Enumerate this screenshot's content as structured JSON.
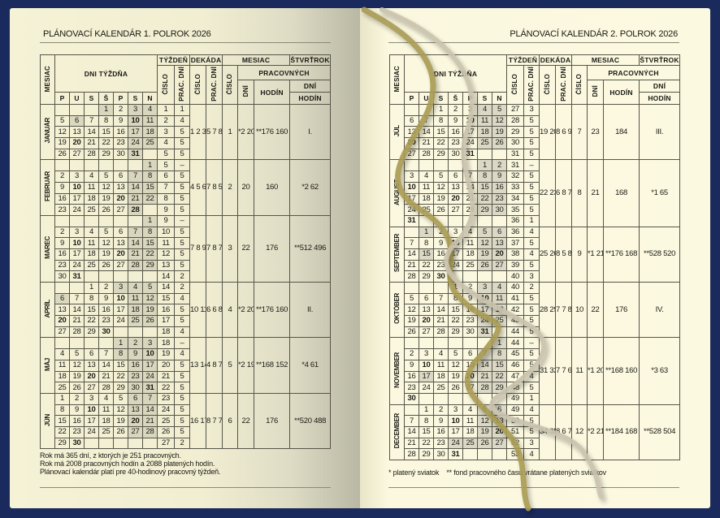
{
  "headers": {
    "mesiac": "MESIAC",
    "dni_tyzdna": "DNI TÝŽDŇA",
    "tyzden": "TÝŽDEŇ",
    "dekada": "DEKÁDA",
    "mesiac_group": "MESIAC",
    "stvrtrok": "ŠTVRŤROK",
    "cislo": "ČÍSLO",
    "prac_dni": "PRAC. DNÍ",
    "pracovnych": "PRACOVNÝCH",
    "dni": "DNÍ",
    "hodin": "HODÍN",
    "weekdays": [
      "P",
      "U",
      "S",
      "Š",
      "P",
      "S",
      "N"
    ]
  },
  "colors": {
    "frame": "#1b2a5c",
    "paper": "#fbf8df",
    "shade": "#dbd9c6"
  },
  "pages": [
    {
      "title": "PLÁNOVACÍ KALENDÁR 1. POLROK 2026",
      "months": [
        {
          "name": "JANUÁR",
          "weeks": [
            [
              "",
              "",
              "",
              1,
              2,
              3,
              4
            ],
            [
              5,
              6,
              7,
              8,
              9,
              10,
              11
            ],
            [
              12,
              13,
              14,
              15,
              16,
              17,
              18
            ],
            [
              19,
              20,
              21,
              22,
              23,
              24,
              25
            ],
            [
              26,
              27,
              28,
              29,
              30,
              31,
              ""
            ]
          ],
          "week_numbers": [
            "1",
            "2",
            "3",
            "4",
            "5"
          ],
          "week_workdays": [
            "1",
            "4",
            "5",
            "5",
            "5"
          ],
          "decades": "1\n2\n3",
          "decade_workdays": "5\n7\n8",
          "month_number": "1",
          "workdays": "*2\n20",
          "hours": "**176\n160",
          "quarter": "I.",
          "holidays": [
            1,
            6
          ]
        },
        {
          "name": "FEBRUÁR",
          "weeks": [
            [
              "",
              "",
              "",
              "",
              "",
              "",
              1
            ],
            [
              2,
              3,
              4,
              5,
              6,
              7,
              8
            ],
            [
              9,
              10,
              11,
              12,
              13,
              14,
              15
            ],
            [
              16,
              17,
              18,
              19,
              20,
              21,
              22
            ],
            [
              23,
              24,
              25,
              26,
              27,
              28,
              ""
            ]
          ],
          "week_numbers": [
            "5",
            "6",
            "7",
            "8",
            "9"
          ],
          "week_workdays": [
            "–",
            "5",
            "5",
            "5",
            "5"
          ],
          "decades": "4\n5\n6",
          "decade_workdays": "7\n8\n5",
          "month_number": "2",
          "workdays": "20",
          "hours": "160",
          "quarter": "*2\n62",
          "holidays": []
        },
        {
          "name": "MAREC",
          "weeks": [
            [
              "",
              "",
              "",
              "",
              "",
              "",
              1
            ],
            [
              2,
              3,
              4,
              5,
              6,
              7,
              8
            ],
            [
              9,
              10,
              11,
              12,
              13,
              14,
              15
            ],
            [
              16,
              17,
              18,
              19,
              20,
              21,
              22
            ],
            [
              23,
              24,
              25,
              26,
              27,
              28,
              29
            ],
            [
              30,
              31,
              "",
              "",
              "",
              "",
              ""
            ]
          ],
          "week_numbers": [
            "9",
            "10",
            "11",
            "12",
            "13",
            "14"
          ],
          "week_workdays": [
            "–",
            "5",
            "5",
            "5",
            "5",
            "2"
          ],
          "decades": "7\n8\n9",
          "decade_workdays": "7\n8\n7",
          "month_number": "3",
          "workdays": "22",
          "hours": "176",
          "quarter": "**512\n496",
          "holidays": []
        },
        {
          "name": "APRÍL",
          "weeks": [
            [
              "",
              "",
              1,
              2,
              3,
              4,
              5
            ],
            [
              6,
              7,
              8,
              9,
              10,
              11,
              12
            ],
            [
              13,
              14,
              15,
              16,
              17,
              18,
              19
            ],
            [
              20,
              21,
              22,
              23,
              24,
              25,
              26
            ],
            [
              27,
              28,
              29,
              30,
              "",
              "",
              ""
            ]
          ],
          "week_numbers": [
            "14",
            "15",
            "16",
            "17",
            "18"
          ],
          "week_workdays": [
            "2",
            "4",
            "5",
            "5",
            "4"
          ],
          "decades": "10\n11\n12",
          "decade_workdays": "6\n6\n8",
          "month_number": "4",
          "workdays": "*2\n20",
          "hours": "**176\n160",
          "quarter": "II.",
          "holidays": [
            3,
            6
          ]
        },
        {
          "name": "MÁJ",
          "weeks": [
            [
              "",
              "",
              "",
              "",
              1,
              2,
              3
            ],
            [
              4,
              5,
              6,
              7,
              8,
              9,
              10
            ],
            [
              11,
              12,
              13,
              14,
              15,
              16,
              17
            ],
            [
              18,
              19,
              20,
              21,
              22,
              23,
              24
            ],
            [
              25,
              26,
              27,
              28,
              29,
              30,
              31
            ]
          ],
          "week_numbers": [
            "18",
            "19",
            "20",
            "21",
            "22"
          ],
          "week_workdays": [
            "–",
            "4",
            "5",
            "5",
            "5"
          ],
          "decades": "13\n14\n15",
          "decade_workdays": "4\n8\n7",
          "month_number": "5",
          "workdays": "*2\n19",
          "hours": "**168\n152",
          "quarter": "*4\n61",
          "holidays": [
            1,
            8
          ]
        },
        {
          "name": "JÚN",
          "weeks": [
            [
              1,
              2,
              3,
              4,
              5,
              6,
              7
            ],
            [
              8,
              9,
              10,
              11,
              12,
              13,
              14
            ],
            [
              15,
              16,
              17,
              18,
              19,
              20,
              21
            ],
            [
              22,
              23,
              24,
              25,
              26,
              27,
              28
            ],
            [
              29,
              30,
              "",
              "",
              "",
              "",
              ""
            ]
          ],
          "week_numbers": [
            "23",
            "24",
            "25",
            "26",
            "27"
          ],
          "week_workdays": [
            "5",
            "5",
            "5",
            "5",
            "2"
          ],
          "decades": "16\n17\n18",
          "decade_workdays": "8\n7\n7",
          "month_number": "6",
          "workdays": "22",
          "hours": "176",
          "quarter": "**520\n488",
          "holidays": []
        }
      ],
      "footer_lines": [
        "Rok má 365 dní, z ktorých je 251 pracovných.",
        "Rok má 2008 pracovných hodín a 2088 platených hodín.",
        "Plánovací kalendár platí pre 40-hodinový pracovný týždeň."
      ]
    },
    {
      "title": "PLÁNOVACÍ KALENDÁR 2. POLROK 2026",
      "months": [
        {
          "name": "JÚL",
          "weeks": [
            [
              "",
              "",
              1,
              2,
              3,
              4,
              5
            ],
            [
              6,
              7,
              8,
              9,
              10,
              11,
              12
            ],
            [
              13,
              14,
              15,
              16,
              17,
              18,
              19
            ],
            [
              20,
              21,
              22,
              23,
              24,
              25,
              26
            ],
            [
              27,
              28,
              29,
              30,
              31,
              "",
              ""
            ]
          ],
          "week_numbers": [
            "27",
            "28",
            "29",
            "30",
            "31"
          ],
          "week_workdays": [
            "3",
            "5",
            "5",
            "5",
            "5"
          ],
          "decades": "19\n20\n21",
          "decade_workdays": "8\n6\n9",
          "month_number": "7",
          "workdays": "23",
          "hours": "184",
          "quarter": "III.",
          "holidays": []
        },
        {
          "name": "AUGUST",
          "weeks": [
            [
              "",
              "",
              "",
              "",
              "",
              1,
              2
            ],
            [
              3,
              4,
              5,
              6,
              7,
              8,
              9
            ],
            [
              10,
              11,
              12,
              13,
              14,
              15,
              16
            ],
            [
              17,
              18,
              19,
              20,
              21,
              22,
              23
            ],
            [
              24,
              25,
              26,
              27,
              28,
              29,
              30
            ],
            [
              31,
              "",
              "",
              "",
              "",
              "",
              ""
            ]
          ],
          "week_numbers": [
            "31",
            "32",
            "33",
            "34",
            "35",
            "36"
          ],
          "week_workdays": [
            "–",
            "5",
            "5",
            "5",
            "5",
            "1"
          ],
          "decades": "22\n23\n24",
          "decade_workdays": "6\n8\n7",
          "month_number": "8",
          "workdays": "21",
          "hours": "168",
          "quarter": "*1\n65",
          "holidays": [
            29
          ]
        },
        {
          "name": "SEPTEMBER",
          "weeks": [
            [
              "",
              1,
              2,
              3,
              4,
              5,
              6
            ],
            [
              7,
              8,
              9,
              10,
              11,
              12,
              13
            ],
            [
              14,
              15,
              16,
              17,
              18,
              19,
              20
            ],
            [
              21,
              22,
              23,
              24,
              25,
              26,
              27
            ],
            [
              28,
              29,
              30,
              "",
              "",
              "",
              ""
            ]
          ],
          "week_numbers": [
            "36",
            "37",
            "38",
            "39",
            "40"
          ],
          "week_workdays": [
            "4",
            "5",
            "4",
            "5",
            "3"
          ],
          "decades": "25\n26\n27",
          "decade_workdays": "8\n5\n8",
          "month_number": "9",
          "workdays": "*1\n21",
          "hours": "**176\n168",
          "quarter": "**528\n520",
          "holidays": [
            1,
            15
          ]
        },
        {
          "name": "OKTÓBER",
          "weeks": [
            [
              "",
              "",
              "",
              1,
              2,
              3,
              4
            ],
            [
              5,
              6,
              7,
              8,
              9,
              10,
              11
            ],
            [
              12,
              13,
              14,
              15,
              16,
              17,
              18
            ],
            [
              19,
              20,
              21,
              22,
              23,
              24,
              25
            ],
            [
              26,
              27,
              28,
              29,
              30,
              31,
              ""
            ]
          ],
          "week_numbers": [
            "40",
            "41",
            "42",
            "43",
            "44"
          ],
          "week_workdays": [
            "2",
            "5",
            "5",
            "5",
            "5"
          ],
          "decades": "28\n29\n30",
          "decade_workdays": "7\n7\n8",
          "month_number": "10",
          "workdays": "22",
          "hours": "176",
          "quarter": "IV.",
          "holidays": []
        },
        {
          "name": "NOVEMBER",
          "weeks": [
            [
              "",
              "",
              "",
              "",
              "",
              "",
              1
            ],
            [
              2,
              3,
              4,
              5,
              6,
              7,
              8
            ],
            [
              9,
              10,
              11,
              12,
              13,
              14,
              15
            ],
            [
              16,
              17,
              18,
              19,
              20,
              21,
              22
            ],
            [
              23,
              24,
              25,
              26,
              27,
              28,
              29
            ],
            [
              30,
              "",
              "",
              "",
              "",
              "",
              ""
            ]
          ],
          "week_numbers": [
            "44",
            "45",
            "46",
            "47",
            "48",
            "49"
          ],
          "week_workdays": [
            "–",
            "5",
            "5",
            "4",
            "5",
            "1"
          ],
          "decades": "31\n32\n33",
          "decade_workdays": "7\n7\n6",
          "month_number": "11",
          "workdays": "*1\n20",
          "hours": "**168\n160",
          "quarter": "*3\n63",
          "holidays": [
            1,
            17
          ]
        },
        {
          "name": "DECEMBER",
          "weeks": [
            [
              "",
              1,
              2,
              3,
              4,
              5,
              6
            ],
            [
              7,
              8,
              9,
              10,
              11,
              12,
              13
            ],
            [
              14,
              15,
              16,
              17,
              18,
              19,
              20
            ],
            [
              21,
              22,
              23,
              24,
              25,
              26,
              27
            ],
            [
              28,
              29,
              30,
              31,
              "",
              "",
              ""
            ]
          ],
          "week_numbers": [
            "49",
            "50",
            "51",
            "52",
            "53"
          ],
          "week_workdays": [
            "4",
            "5",
            "5",
            "3",
            "4"
          ],
          "decades": "34\n35\n36",
          "decade_workdays": "8\n6\n7",
          "month_number": "12",
          "workdays": "*2\n21",
          "hours": "**184\n168",
          "quarter": "**528\n504",
          "holidays": [
            24,
            25,
            26
          ]
        }
      ],
      "footer_lines": [
        "* platený sviatok    ** fond pracovného času vrátane platených sviatkov"
      ]
    }
  ]
}
